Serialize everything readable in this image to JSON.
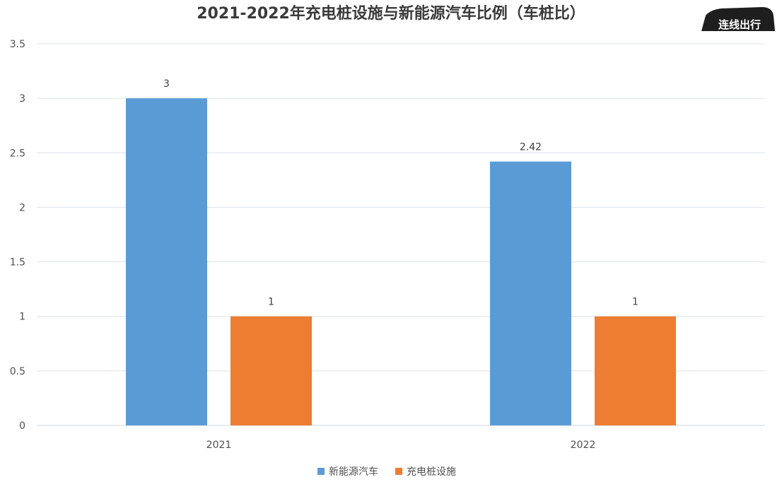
{
  "watermark": "连线出行",
  "chart_data": {
    "type": "bar",
    "title": "2021-2022年充电桩设施与新能源汽车比例（车桩比）",
    "categories": [
      "2021",
      "2022"
    ],
    "series": [
      {
        "name": "新能源汽车",
        "values": [
          3,
          2.42
        ],
        "value_labels": [
          "3",
          "2.42"
        ],
        "color": "#5b9bd5"
      },
      {
        "name": "充电桩设施",
        "values": [
          1,
          1
        ],
        "value_labels": [
          "1",
          "1"
        ],
        "color": "#ed7d31"
      }
    ],
    "ylim": [
      0,
      3.5
    ],
    "yticks": [
      "0",
      "0.5",
      "1",
      "1.5",
      "2",
      "2.5",
      "3",
      "3.5"
    ],
    "grid": true,
    "legend": "bottom"
  }
}
